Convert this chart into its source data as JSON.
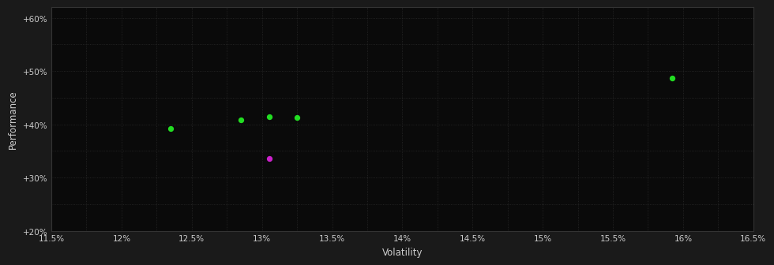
{
  "background_color": "#1a1a1a",
  "plot_bg_color": "#0a0a0a",
  "grid_color": "#2a2a2a",
  "text_color": "#cccccc",
  "xlabel": "Volatility",
  "ylabel": "Performance",
  "xlim": [
    0.115,
    0.165
  ],
  "ylim": [
    0.2,
    0.62
  ],
  "xticks": [
    0.115,
    0.12,
    0.125,
    0.13,
    0.135,
    0.14,
    0.145,
    0.15,
    0.155,
    0.16,
    0.165
  ],
  "yticks": [
    0.2,
    0.3,
    0.4,
    0.5,
    0.6
  ],
  "ytick_labels": [
    "+20%",
    "+30%",
    "+40%",
    "+50%",
    "+60%"
  ],
  "xtick_labels": [
    "11.5%",
    "12%",
    "12.5%",
    "13%",
    "13.5%",
    "14%",
    "14.5%",
    "15%",
    "15.5%",
    "16%",
    "16.5%"
  ],
  "green_points": [
    [
      0.1235,
      0.392
    ],
    [
      0.1285,
      0.408
    ],
    [
      0.1305,
      0.414
    ],
    [
      0.1325,
      0.412
    ],
    [
      0.1592,
      0.487
    ]
  ],
  "magenta_points": [
    [
      0.1305,
      0.335
    ]
  ],
  "point_size": 18,
  "green_color": "#22dd22",
  "magenta_color": "#cc22cc",
  "minor_xticks": [
    0.1175,
    0.1225,
    0.1275,
    0.1325,
    0.1375,
    0.1425,
    0.1475,
    0.1525,
    0.1575,
    0.1625
  ],
  "minor_yticks": [
    0.25,
    0.35,
    0.45,
    0.55
  ]
}
